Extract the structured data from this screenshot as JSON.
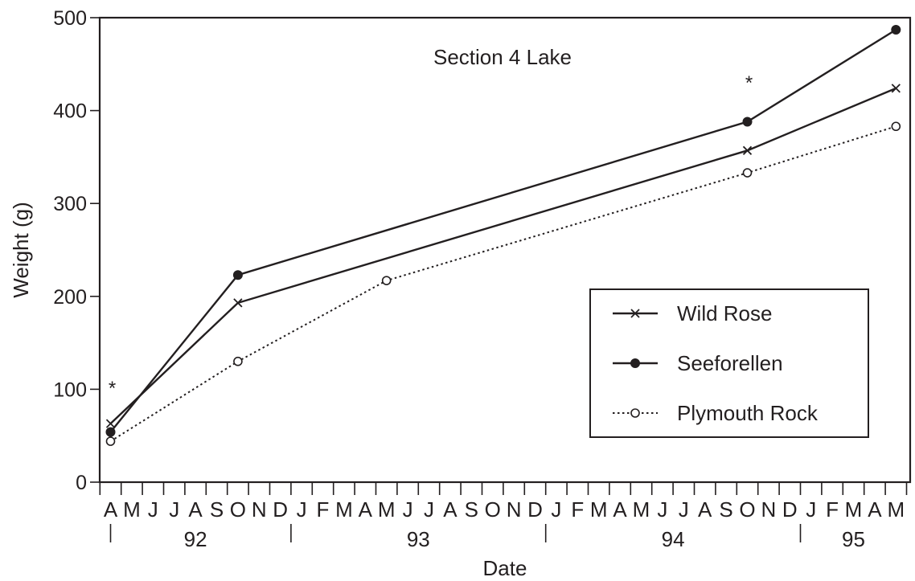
{
  "chart_data": {
    "type": "line",
    "title": "Section 4 Lake",
    "xlabel": "Date",
    "ylabel": "Weight (g)",
    "ylim": [
      0,
      500
    ],
    "yticks": [
      0,
      100,
      200,
      300,
      400,
      500
    ],
    "month_labels": [
      "A",
      "M",
      "J",
      "J",
      "A",
      "S",
      "O",
      "N",
      "D",
      "J",
      "F",
      "M",
      "A",
      "M",
      "J",
      "J",
      "A",
      "S",
      "O",
      "N",
      "D",
      "J",
      "F",
      "M",
      "A",
      "M",
      "J",
      "J",
      "A",
      "S",
      "O",
      "N",
      "D",
      "J",
      "F",
      "M",
      "A",
      "M"
    ],
    "year_labels": [
      "92",
      "93",
      "94",
      "95"
    ],
    "series": [
      {
        "name": "Wild Rose",
        "style": "solid",
        "marker": "x",
        "x": [
          "1992-04",
          "1992-10",
          "1994-10",
          "1995-05"
        ],
        "y": [
          63,
          193,
          357,
          424
        ]
      },
      {
        "name": "Seeforellen",
        "style": "solid",
        "marker": "filled-circle",
        "x": [
          "1992-04",
          "1992-10",
          "1994-10",
          "1995-05"
        ],
        "y": [
          54,
          223,
          388,
          487
        ]
      },
      {
        "name": "Plymouth Rock",
        "style": "dotted",
        "marker": "open-circle",
        "x": [
          "1992-04",
          "1992-10",
          "1993-05",
          "1994-10",
          "1995-05"
        ],
        "y": [
          44,
          130,
          217,
          333,
          383
        ]
      }
    ],
    "annotations": [
      {
        "text": "*",
        "x": "1992-04",
        "y": 108
      },
      {
        "text": "*",
        "x": "1994-10",
        "y": 437
      }
    ],
    "legend": {
      "position": "bottom-right"
    },
    "grid": false,
    "colors": {
      "line": "#231f20",
      "background": "#ffffff"
    }
  }
}
